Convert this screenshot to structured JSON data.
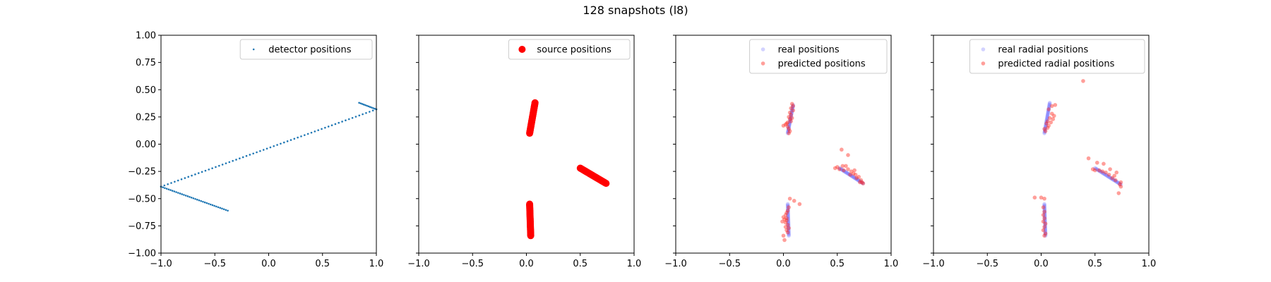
{
  "figure": {
    "title": "128 snapshots (l8)"
  },
  "chart_data": [
    {
      "type": "scatter",
      "xlim": [
        -1.0,
        1.0
      ],
      "ylim": [
        -1.0,
        1.0
      ],
      "xticks": [
        "−1.0",
        "−0.5",
        "0.0",
        "0.5",
        "1.0"
      ],
      "yticks": [
        "−1.00",
        "−0.75",
        "−0.50",
        "−0.25",
        "0.00",
        "0.25",
        "0.50",
        "0.75",
        "1.00"
      ],
      "show_ytick_labels": true,
      "grid": false,
      "legend_position": "top-right",
      "series": [
        {
          "name": "detector positions",
          "color": "#1f77b4",
          "marker": "small-dot",
          "alpha": 1.0,
          "segments": [
            {
              "from": [
                -1.0,
                -0.39
              ],
              "to": [
                1.0,
                0.32
              ],
              "n": 64
            },
            {
              "from": [
                -1.0,
                -0.39
              ],
              "to": [
                -0.38,
                -0.61
              ],
              "n": 36
            },
            {
              "from": [
                1.0,
                0.32
              ],
              "to": [
                0.84,
                0.38
              ],
              "n": 12
            }
          ]
        }
      ]
    },
    {
      "type": "scatter",
      "xlim": [
        -1.0,
        1.0
      ],
      "ylim": [
        -1.0,
        1.0
      ],
      "xticks": [
        "−1.0",
        "−0.5",
        "0.0",
        "0.5",
        "1.0"
      ],
      "show_ytick_labels": false,
      "grid": false,
      "legend_position": "top-right",
      "series": [
        {
          "name": "source positions",
          "color": "#ff0000",
          "marker": "large-dot",
          "alpha": 1.0,
          "segments": [
            {
              "from": [
                0.03,
                0.1
              ],
              "to": [
                0.08,
                0.38
              ],
              "n": 40
            },
            {
              "from": [
                0.5,
                -0.22
              ],
              "to": [
                0.74,
                -0.36
              ],
              "n": 40
            },
            {
              "from": [
                0.03,
                -0.55
              ],
              "to": [
                0.04,
                -0.84
              ],
              "n": 40
            }
          ]
        }
      ]
    },
    {
      "type": "scatter",
      "xlim": [
        -1.0,
        1.0
      ],
      "ylim": [
        -1.0,
        1.0
      ],
      "xticks": [
        "−1.0",
        "−0.5",
        "0.0",
        "0.5",
        "1.0"
      ],
      "show_ytick_labels": false,
      "grid": false,
      "legend_position": "top-right",
      "series": [
        {
          "name": "real positions",
          "color": "#4d4dff",
          "marker": "medium-dot",
          "alpha": 0.25,
          "segments": [
            {
              "from": [
                0.04,
                0.1
              ],
              "to": [
                0.09,
                0.36
              ],
              "n": 30
            },
            {
              "from": [
                0.52,
                -0.22
              ],
              "to": [
                0.74,
                -0.36
              ],
              "n": 30
            },
            {
              "from": [
                0.04,
                -0.55
              ],
              "to": [
                0.05,
                -0.84
              ],
              "n": 30
            }
          ]
        },
        {
          "name": "predicted positions",
          "color": "#ff2a1f",
          "marker": "medium-dot",
          "alpha": 0.45,
          "points": [
            [
              0.08,
              0.37
            ],
            [
              0.09,
              0.35
            ],
            [
              0.07,
              0.33
            ],
            [
              0.09,
              0.31
            ],
            [
              0.06,
              0.29
            ],
            [
              0.07,
              0.27
            ],
            [
              0.05,
              0.25
            ],
            [
              0.06,
              0.23
            ],
            [
              0.07,
              0.21
            ],
            [
              0.03,
              0.19
            ],
            [
              0.0,
              0.17
            ],
            [
              0.04,
              0.16
            ],
            [
              0.05,
              0.14
            ],
            [
              0.06,
              0.12
            ],
            [
              0.05,
              0.1
            ],
            [
              0.02,
              0.18
            ],
            [
              0.08,
              0.24
            ],
            [
              0.04,
              0.2
            ],
            [
              0.54,
              -0.05
            ],
            [
              0.6,
              -0.1
            ],
            [
              0.48,
              -0.22
            ],
            [
              0.52,
              -0.23
            ],
            [
              0.56,
              -0.24
            ],
            [
              0.58,
              -0.2
            ],
            [
              0.6,
              -0.23
            ],
            [
              0.63,
              -0.25
            ],
            [
              0.65,
              -0.27
            ],
            [
              0.67,
              -0.28
            ],
            [
              0.7,
              -0.3
            ],
            [
              0.72,
              -0.33
            ],
            [
              0.73,
              -0.35
            ],
            [
              0.74,
              -0.36
            ],
            [
              0.71,
              -0.35
            ],
            [
              0.68,
              -0.31
            ],
            [
              0.62,
              -0.28
            ],
            [
              0.55,
              -0.2
            ],
            [
              0.5,
              -0.21
            ],
            [
              0.66,
              -0.24
            ],
            [
              0.06,
              -0.5
            ],
            [
              0.1,
              -0.52
            ],
            [
              0.15,
              -0.55
            ],
            [
              0.05,
              -0.58
            ],
            [
              0.04,
              -0.61
            ],
            [
              0.03,
              -0.63
            ],
            [
              0.02,
              -0.65
            ],
            [
              0.0,
              -0.67
            ],
            [
              0.01,
              -0.69
            ],
            [
              0.03,
              -0.7
            ],
            [
              0.02,
              -0.72
            ],
            [
              0.04,
              -0.74
            ],
            [
              0.05,
              -0.77
            ],
            [
              0.03,
              -0.79
            ],
            [
              0.04,
              -0.81
            ],
            [
              0.0,
              -0.84
            ],
            [
              0.01,
              -0.88
            ],
            [
              0.02,
              -0.76
            ],
            [
              -0.01,
              -0.71
            ],
            [
              0.03,
              -0.68
            ]
          ]
        }
      ]
    },
    {
      "type": "scatter",
      "xlim": [
        -1.0,
        1.0
      ],
      "ylim": [
        -1.0,
        1.0
      ],
      "xticks": [
        "−1.0",
        "−0.5",
        "0.0",
        "0.5",
        "1.0"
      ],
      "show_ytick_labels": false,
      "grid": false,
      "legend_position": "top-right",
      "series": [
        {
          "name": "real radial positions",
          "color": "#4d4dff",
          "marker": "medium-dot",
          "alpha": 0.25,
          "segments": [
            {
              "from": [
                0.03,
                0.1
              ],
              "to": [
                0.08,
                0.38
              ],
              "n": 30
            },
            {
              "from": [
                0.5,
                -0.22
              ],
              "to": [
                0.74,
                -0.37
              ],
              "n": 30
            },
            {
              "from": [
                0.03,
                -0.55
              ],
              "to": [
                0.04,
                -0.84
              ],
              "n": 30
            }
          ]
        },
        {
          "name": "predicted radial positions",
          "color": "#ff2a1f",
          "marker": "medium-dot",
          "alpha": 0.45,
          "points": [
            [
              0.39,
              0.58
            ],
            [
              0.1,
              0.35
            ],
            [
              0.13,
              0.36
            ],
            [
              0.07,
              0.32
            ],
            [
              0.1,
              0.28
            ],
            [
              0.12,
              0.26
            ],
            [
              0.08,
              0.24
            ],
            [
              0.06,
              0.21
            ],
            [
              0.05,
              0.19
            ],
            [
              0.07,
              0.17
            ],
            [
              0.03,
              0.14
            ],
            [
              0.04,
              0.12
            ],
            [
              0.11,
              0.23
            ],
            [
              0.09,
              0.2
            ],
            [
              0.06,
              0.15
            ],
            [
              0.44,
              -0.13
            ],
            [
              0.52,
              -0.17
            ],
            [
              0.58,
              -0.18
            ],
            [
              0.64,
              -0.23
            ],
            [
              0.7,
              -0.26
            ],
            [
              0.74,
              -0.35
            ],
            [
              0.72,
              -0.45
            ],
            [
              0.54,
              -0.24
            ],
            [
              0.57,
              -0.25
            ],
            [
              0.6,
              -0.26
            ],
            [
              0.63,
              -0.28
            ],
            [
              0.66,
              -0.31
            ],
            [
              0.69,
              -0.33
            ],
            [
              0.73,
              -0.37
            ],
            [
              0.74,
              -0.39
            ],
            [
              0.68,
              -0.29
            ],
            [
              0.48,
              -0.23
            ],
            [
              0.5,
              -0.24
            ],
            [
              -0.06,
              -0.49
            ],
            [
              0.0,
              -0.49
            ],
            [
              0.03,
              -0.5
            ],
            [
              0.02,
              -0.58
            ],
            [
              0.03,
              -0.62
            ],
            [
              0.02,
              -0.65
            ],
            [
              0.03,
              -0.68
            ],
            [
              0.02,
              -0.71
            ],
            [
              0.04,
              -0.73
            ],
            [
              0.03,
              -0.76
            ],
            [
              0.02,
              -0.79
            ],
            [
              0.04,
              -0.82
            ],
            [
              0.03,
              -0.84
            ]
          ]
        }
      ]
    }
  ]
}
